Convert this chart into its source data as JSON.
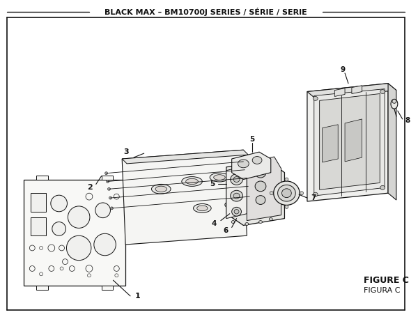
{
  "title": "BLACK MAX – BM10700J SERIES / SÉRIE / SERIE",
  "figure_label": "FIGURE C",
  "figure_label2": "FIGURA C",
  "bg_color": "#ffffff",
  "border_color": "#111111",
  "line_color": "#111111",
  "text_color": "#111111",
  "fill_light": "#f0f0ee",
  "fill_mid": "#e0e0dc",
  "fill_dark": "#ccccca"
}
